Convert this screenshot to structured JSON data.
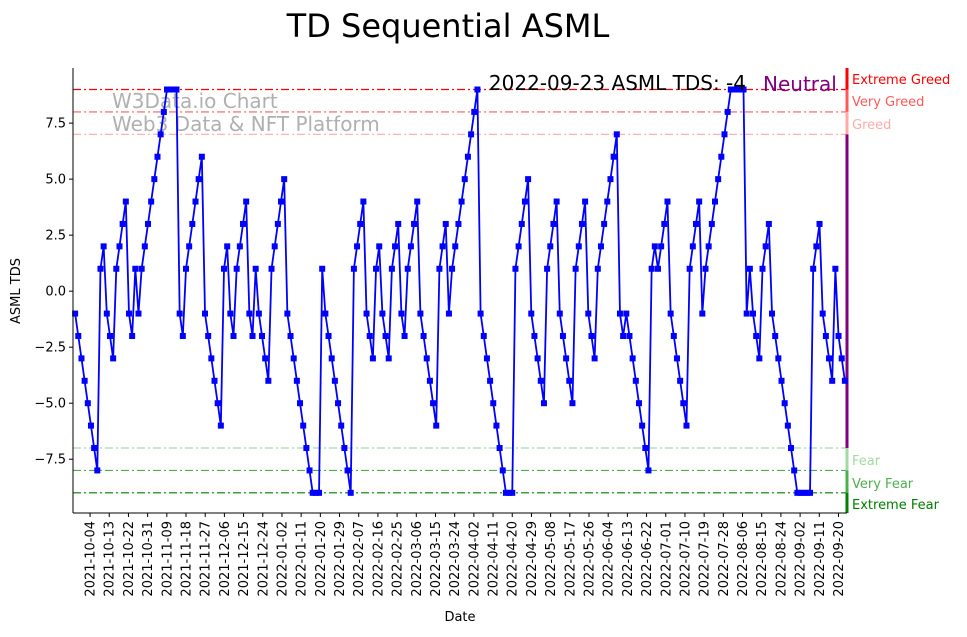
{
  "chart_data": {
    "type": "line",
    "title": "TD Sequential ASML",
    "xlabel": "Date",
    "ylabel": "ASML TDS",
    "x_start": "2021-09-27",
    "x_end": "2022-09-23",
    "xlim": [
      "2021-09-26",
      "2022-09-24"
    ],
    "ylim": [
      -9.9,
      9.96
    ],
    "yticks": [
      -7.5,
      -5.0,
      -2.5,
      0.0,
      2.5,
      5.0,
      7.5
    ],
    "ytick_labels": [
      "−7.5",
      "−5.0",
      "−2.5",
      "0.0",
      "2.5",
      "5.0",
      "7.5"
    ],
    "xtick_labels": [
      "2021-10-04",
      "2021-10-13",
      "2021-10-22",
      "2021-10-31",
      "2021-11-09",
      "2021-11-18",
      "2021-11-27",
      "2021-12-06",
      "2021-12-15",
      "2021-12-24",
      "2022-01-02",
      "2022-01-11",
      "2022-01-20",
      "2022-01-29",
      "2022-02-07",
      "2022-02-16",
      "2022-02-25",
      "2022-03-06",
      "2022-03-15",
      "2022-03-24",
      "2022-04-02",
      "2022-04-11",
      "2022-04-20",
      "2022-04-29",
      "2022-05-08",
      "2022-05-17",
      "2022-05-26",
      "2022-06-04",
      "2022-06-13",
      "2022-06-22",
      "2022-07-01",
      "2022-07-10",
      "2022-07-19",
      "2022-07-28",
      "2022-08-06",
      "2022-08-15",
      "2022-08-24",
      "2022-09-02",
      "2022-09-11",
      "2022-09-20"
    ],
    "series": [
      {
        "name": "ASML TDS",
        "color": "#0000ff",
        "values": [
          -1,
          -2,
          -3,
          -4,
          -5,
          -6,
          -7,
          -8,
          1,
          2,
          -1,
          -2,
          -3,
          1,
          2,
          3,
          4,
          -1,
          -2,
          1,
          -1,
          1,
          2,
          3,
          4,
          5,
          6,
          7,
          8,
          9,
          9,
          9,
          9,
          -1,
          -2,
          1,
          2,
          3,
          4,
          5,
          6,
          -1,
          -2,
          -3,
          -4,
          -5,
          -6,
          1,
          2,
          -1,
          -2,
          1,
          2,
          3,
          4,
          -1,
          -2,
          1,
          -1,
          -2,
          -3,
          -4,
          1,
          2,
          3,
          4,
          5,
          -1,
          -2,
          -3,
          -4,
          -5,
          -6,
          -7,
          -8,
          -9,
          -9,
          -9,
          1,
          -1,
          -2,
          -3,
          -4,
          -5,
          -6,
          -7,
          -8,
          -9,
          1,
          2,
          3,
          4,
          -1,
          -2,
          -3,
          1,
          2,
          -1,
          -2,
          -3,
          1,
          2,
          3,
          -1,
          -2,
          1,
          2,
          3,
          4,
          -1,
          -2,
          -3,
          -4,
          -5,
          -6,
          1,
          2,
          3,
          -1,
          1,
          2,
          3,
          4,
          5,
          6,
          7,
          8,
          9,
          -1,
          -2,
          -3,
          -4,
          -5,
          -6,
          -7,
          -8,
          -9,
          -9,
          -9,
          1,
          2,
          3,
          4,
          5,
          -1,
          -2,
          -3,
          -4,
          -5,
          1,
          2,
          3,
          4,
          -1,
          -2,
          -3,
          -4,
          -5,
          1,
          2,
          3,
          4,
          -1,
          -2,
          -3,
          1,
          2,
          3,
          4,
          5,
          6,
          7,
          -1,
          -2,
          -1,
          -2,
          -3,
          -4,
          -5,
          -6,
          -7,
          -8,
          1,
          2,
          1,
          2,
          3,
          4,
          -1,
          -2,
          -3,
          -4,
          -5,
          -6,
          1,
          2,
          3,
          4,
          -1,
          1,
          2,
          3,
          4,
          5,
          6,
          7,
          8,
          9,
          9,
          9,
          9,
          9,
          -1,
          1,
          -1,
          -2,
          -3,
          1,
          2,
          3,
          -1,
          -2,
          -3,
          -4,
          -5,
          -6,
          -7,
          -8,
          -9,
          -9,
          -9,
          -9,
          -9,
          1,
          2,
          3,
          -1,
          -2,
          -3,
          -4,
          1,
          -2,
          -3,
          -4
        ]
      }
    ],
    "reference_lines": [
      {
        "value": 9,
        "label": "Extreme Greed",
        "color": "#ff0000"
      },
      {
        "value": 8,
        "label": "Very Greed",
        "color": "#ff5a5a"
      },
      {
        "value": 7,
        "label": "Greed",
        "color": "#ffaaaa"
      },
      {
        "value": -7,
        "label": "Fear",
        "color": "#a3d9a3"
      },
      {
        "value": -8,
        "label": "Very Fear",
        "color": "#4caf4c"
      },
      {
        "value": -9,
        "label": "Extreme Fear",
        "color": "#007f00"
      }
    ],
    "neutral_color": "#800080",
    "annotation": {
      "text": "2022-09-23 ASML TDS: -4",
      "status": "Neutral",
      "status_color": "#800080"
    },
    "watermark": [
      "W3Data.io Chart",
      "Web3 Data & NFT Platform"
    ],
    "grid": false
  }
}
